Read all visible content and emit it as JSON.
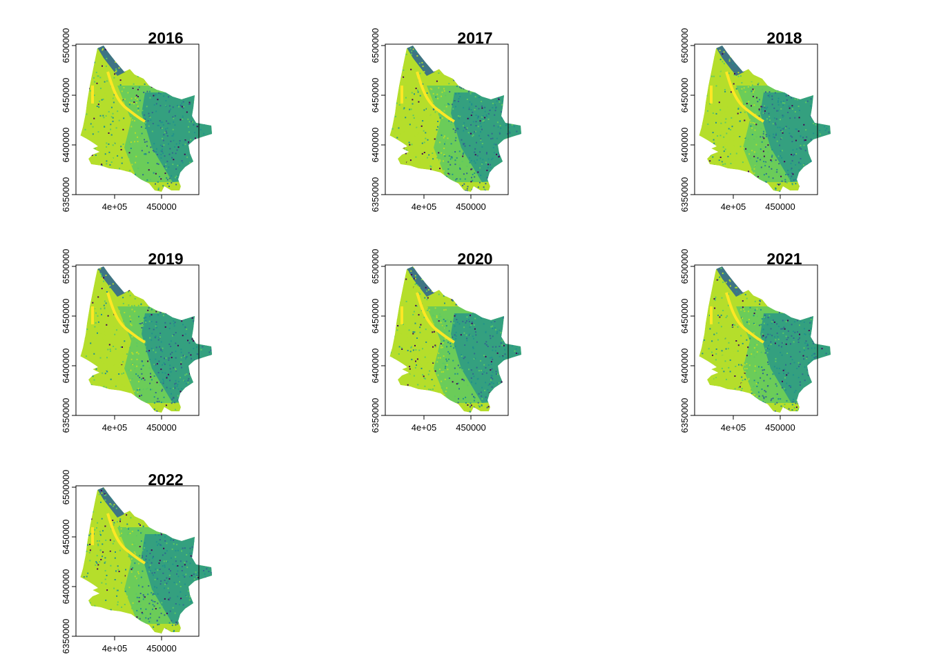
{
  "panels": [
    {
      "title": "2016"
    },
    {
      "title": "2017"
    },
    {
      "title": "2018"
    },
    {
      "title": "2019"
    },
    {
      "title": "2020"
    },
    {
      "title": "2021"
    },
    {
      "title": "2022"
    }
  ],
  "axes": {
    "x_ticks": [
      "4e+05",
      "450000"
    ],
    "y_ticks": [
      "6350000",
      "6400000",
      "6450000",
      "6500000"
    ]
  },
  "colors": {
    "dark_purple": "#440154",
    "dark_blue": "#31688e",
    "teal": "#21918c",
    "green": "#5ec962",
    "lime": "#b5de2b",
    "yellow": "#fde725"
  }
}
